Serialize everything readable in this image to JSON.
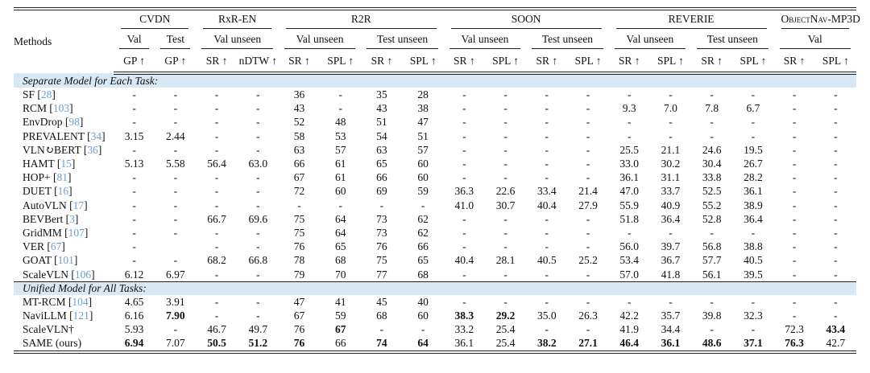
{
  "colors": {
    "citation_blue": "#6b9ed3",
    "section_band": "#d8e8f5",
    "rule": "#222222"
  },
  "table": {
    "methods_header": "Methods",
    "groups": [
      {
        "label": "CVDN",
        "smallcaps": false,
        "subs": [
          {
            "label": "Val",
            "metrics": [
              "GP ↑"
            ]
          },
          {
            "label": "Test",
            "metrics": [
              "GP ↑"
            ]
          }
        ]
      },
      {
        "label": "RxR-EN",
        "smallcaps": false,
        "subs": [
          {
            "label": "Val unseen",
            "metrics": [
              "SR ↑",
              "nDTW ↑"
            ]
          }
        ]
      },
      {
        "label": "R2R",
        "smallcaps": false,
        "subs": [
          {
            "label": "Val unseen",
            "metrics": [
              "SR ↑",
              "SPL ↑"
            ]
          },
          {
            "label": "Test unseen",
            "metrics": [
              "SR ↑",
              "SPL ↑"
            ]
          }
        ]
      },
      {
        "label": "SOON",
        "smallcaps": false,
        "subs": [
          {
            "label": "Val unseen",
            "metrics": [
              "SR ↑",
              "SPL ↑"
            ]
          },
          {
            "label": "Test unseen",
            "metrics": [
              "SR ↑",
              "SPL ↑"
            ]
          }
        ]
      },
      {
        "label": "REVERIE",
        "smallcaps": false,
        "subs": [
          {
            "label": "Val unseen",
            "metrics": [
              "SR ↑",
              "SPL ↑"
            ]
          },
          {
            "label": "Test unseen",
            "metrics": [
              "SR ↑",
              "SPL ↑"
            ]
          }
        ]
      },
      {
        "label": "ObjectNav-MP3D",
        "smallcaps": true,
        "subs": [
          {
            "label": "Val",
            "metrics": [
              "SR ↑",
              "SPL ↑"
            ]
          }
        ]
      }
    ],
    "sections": [
      {
        "title": "Separate Model for Each Task:",
        "rows": [
          {
            "name": "SF",
            "cite": "28",
            "values": [
              "-",
              "-",
              "-",
              "-",
              "36",
              "-",
              "35",
              "28",
              "-",
              "-",
              "-",
              "-",
              "-",
              "-",
              "-",
              "-",
              "-",
              "-"
            ],
            "bold": []
          },
          {
            "name": "RCM",
            "cite": "103",
            "values": [
              "-",
              "-",
              "-",
              "-",
              "43",
              "-",
              "43",
              "38",
              "-",
              "-",
              "-",
              "-",
              "9.3",
              "7.0",
              "7.8",
              "6.7",
              "-",
              "-"
            ],
            "bold": []
          },
          {
            "name": "EnvDrop",
            "cite": "98",
            "values": [
              "-",
              "-",
              "-",
              "-",
              "52",
              "48",
              "51",
              "47",
              "-",
              "-",
              "-",
              "-",
              "-",
              "-",
              "-",
              "-",
              "-",
              "-"
            ],
            "bold": []
          },
          {
            "name": "PREVALENT",
            "cite": "34",
            "values": [
              "3.15",
              "2.44",
              "-",
              "-",
              "58",
              "53",
              "54",
              "51",
              "-",
              "-",
              "-",
              "-",
              "-",
              "-",
              "-",
              "-",
              "-",
              "-"
            ],
            "bold": []
          },
          {
            "name": "VLN↻BERT",
            "cite": "36",
            "values": [
              "-",
              "-",
              "-",
              "-",
              "63",
              "57",
              "63",
              "57",
              "-",
              "-",
              "-",
              "-",
              "25.5",
              "21.1",
              "24.6",
              "19.5",
              "-",
              "-"
            ],
            "bold": []
          },
          {
            "name": "HAMT",
            "cite": "15",
            "values": [
              "5.13",
              "5.58",
              "56.4",
              "63.0",
              "66",
              "61",
              "65",
              "60",
              "-",
              "-",
              "-",
              "-",
              "33.0",
              "30.2",
              "30.4",
              "26.7",
              "-",
              "-"
            ],
            "bold": []
          },
          {
            "name": "HOP+",
            "cite": "81",
            "values": [
              "-",
              "-",
              "-",
              "-",
              "67",
              "61",
              "66",
              "60",
              "-",
              "-",
              "-",
              "-",
              "36.1",
              "31.1",
              "33.8",
              "28.2",
              "-",
              "-"
            ],
            "bold": []
          },
          {
            "name": "DUET",
            "cite": "16",
            "values": [
              "-",
              "-",
              "-",
              "-",
              "72",
              "60",
              "69",
              "59",
              "36.3",
              "22.6",
              "33.4",
              "21.4",
              "47.0",
              "33.7",
              "52.5",
              "36.1",
              "-",
              "-"
            ],
            "bold": []
          },
          {
            "name": "AutoVLN",
            "cite": "17",
            "values": [
              "-",
              "-",
              "-",
              "-",
              "-",
              "-",
              "-",
              "-",
              "41.0",
              "30.7",
              "40.4",
              "27.9",
              "55.9",
              "40.9",
              "55.2",
              "38.9",
              "-",
              "-"
            ],
            "bold": []
          },
          {
            "name": "BEVBert",
            "cite": "3",
            "values": [
              "-",
              "-",
              "66.7",
              "69.6",
              "75",
              "64",
              "73",
              "62",
              "-",
              "-",
              "-",
              "-",
              "51.8",
              "36.4",
              "52.8",
              "36.4",
              "-",
              "-"
            ],
            "bold": []
          },
          {
            "name": "GridMM",
            "cite": "107",
            "values": [
              "-",
              "-",
              "-",
              "-",
              "75",
              "64",
              "73",
              "62",
              "-",
              "-",
              "-",
              "-",
              "-",
              "-",
              "-",
              "-",
              "-",
              "-"
            ],
            "bold": []
          },
          {
            "name": "VER",
            "cite": "67",
            "values": [
              "-",
              "",
              "-",
              "-",
              "76",
              "65",
              "76",
              "66",
              "-",
              "-",
              "-",
              "-",
              "56.0",
              "39.7",
              "56.8",
              "38.8",
              "-",
              "-"
            ],
            "bold": []
          },
          {
            "name": "GOAT",
            "cite": "101",
            "values": [
              "-",
              "-",
              "68.2",
              "66.8",
              "78",
              "68",
              "75",
              "65",
              "40.4",
              "28.1",
              "40.5",
              "25.2",
              "53.4",
              "36.7",
              "57.7",
              "40.5",
              "-",
              "-"
            ],
            "bold": []
          },
          {
            "name": "ScaleVLN",
            "cite": "106",
            "values": [
              "6.12",
              "6.97",
              "-",
              "-",
              "79",
              "70",
              "77",
              "68",
              "-",
              "-",
              "-",
              "-",
              "57.0",
              "41.8",
              "56.1",
              "39.5",
              "-",
              "-"
            ],
            "bold": []
          }
        ]
      },
      {
        "title": "Unified Model for All Tasks:",
        "rows": [
          {
            "name": "MT-RCM",
            "cite": "104",
            "values": [
              "4.65",
              "3.91",
              "-",
              "-",
              "47",
              "41",
              "45",
              "40",
              "-",
              "-",
              "-",
              "-",
              "-",
              "-",
              "-",
              "-",
              "-",
              "-"
            ],
            "bold": []
          },
          {
            "name": "NaviLLM",
            "cite": "121",
            "values": [
              "6.16",
              "7.90",
              "-",
              "-",
              "67",
              "59",
              "68",
              "60",
              "38.3",
              "29.2",
              "35.0",
              "26.3",
              "42.2",
              "35.7",
              "39.8",
              "32.3",
              "-",
              "-"
            ],
            "bold": [
              1,
              8,
              9
            ]
          },
          {
            "name": "ScaleVLN†",
            "cite": null,
            "values": [
              "5.93",
              "-",
              "46.7",
              "49.7",
              "76",
              "67",
              "-",
              "-",
              "33.2",
              "25.4",
              "-",
              "-",
              "41.9",
              "34.4",
              "-",
              "-",
              "72.3",
              "43.4"
            ],
            "bold": [
              5,
              17
            ]
          },
          {
            "name": "SAME (ours)",
            "cite": null,
            "values": [
              "6.94",
              "7.07",
              "50.5",
              "51.2",
              "76",
              "66",
              "74",
              "64",
              "36.1",
              "25.4",
              "38.2",
              "27.1",
              "46.4",
              "36.1",
              "48.6",
              "37.1",
              "76.3",
              "42.7"
            ],
            "bold": [
              0,
              2,
              3,
              4,
              6,
              7,
              10,
              11,
              12,
              13,
              14,
              15,
              16
            ]
          }
        ]
      }
    ]
  }
}
